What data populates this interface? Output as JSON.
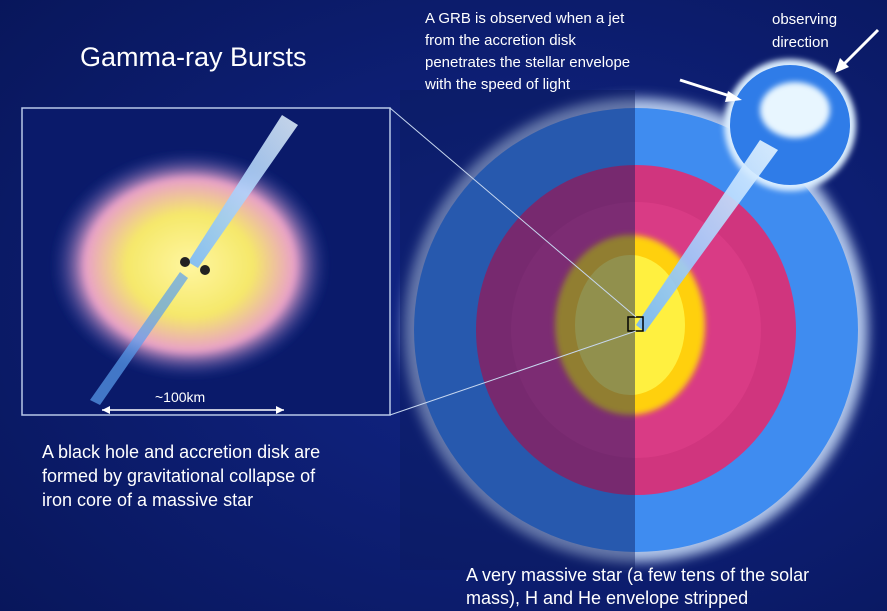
{
  "title": "Gamma-ray Bursts",
  "grb_note": [
    "A GRB is observed when a jet",
    "from the accretion disk",
    "penetrates the stellar envelope",
    "with the speed of light"
  ],
  "observing_note": [
    "observing",
    "direction"
  ],
  "scale_label": "~100km",
  "disk_caption": [
    "A black hole and accretion disk are",
    "formed by gravitational collapse of",
    "iron core of a massive star"
  ],
  "star_caption": [
    "A very massive star (a few tens of the solar",
    "mass), H and He envelope stripped"
  ]
}
